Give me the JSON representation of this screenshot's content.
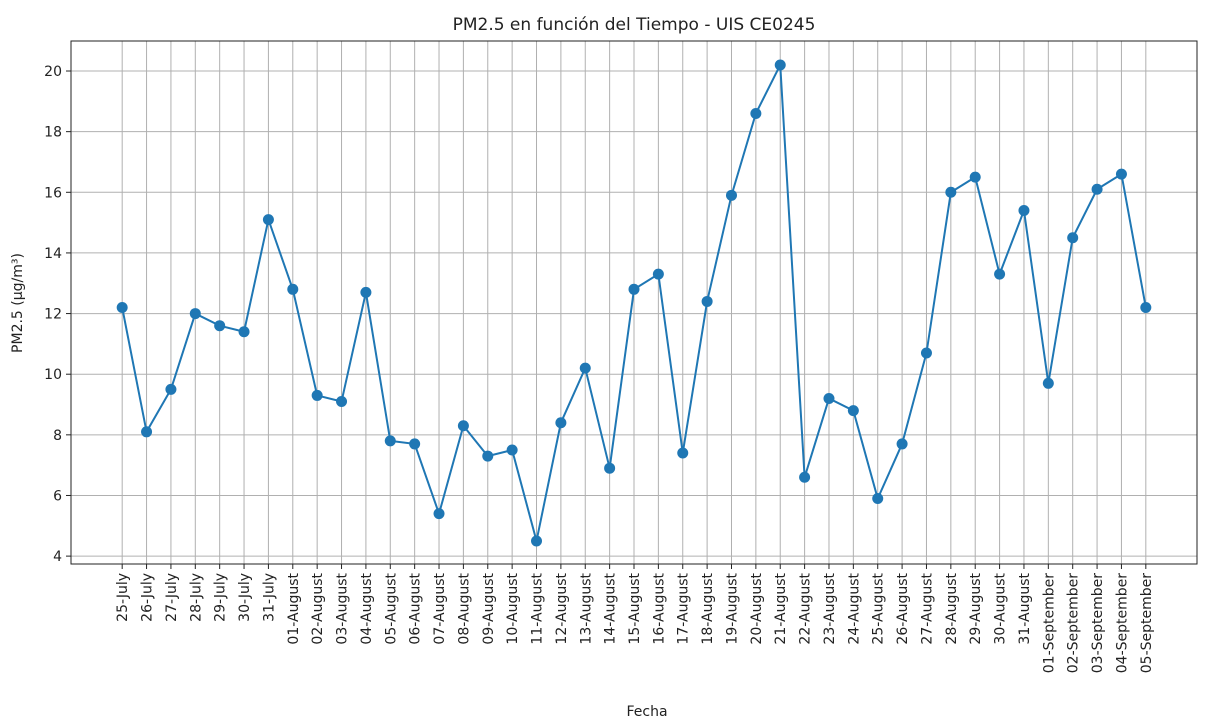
{
  "chart_data": {
    "type": "line",
    "title": "PM2.5 en función del Tiempo - UIS CE0245",
    "x_label": "Fecha",
    "y_label": "PM2.5 (µg/m³)",
    "categories": [
      "25-July",
      "26-July",
      "27-July",
      "28-July",
      "29-July",
      "30-July",
      "31-July",
      "01-August",
      "02-August",
      "03-August",
      "04-August",
      "05-August",
      "06-August",
      "07-August",
      "08-August",
      "09-August",
      "10-August",
      "11-August",
      "12-August",
      "13-August",
      "14-August",
      "15-August",
      "16-August",
      "17-August",
      "18-August",
      "19-August",
      "20-August",
      "21-August",
      "22-August",
      "23-August",
      "24-August",
      "25-August",
      "26-August",
      "27-August",
      "28-August",
      "29-August",
      "30-August",
      "31-August",
      "01-September",
      "02-September",
      "03-September",
      "04-September",
      "05-September"
    ],
    "values": [
      12.2,
      8.1,
      9.5,
      12.0,
      11.6,
      11.4,
      15.1,
      12.8,
      9.3,
      9.1,
      12.7,
      7.8,
      7.7,
      5.4,
      8.3,
      7.3,
      7.5,
      4.5,
      8.4,
      10.2,
      6.9,
      12.8,
      13.3,
      7.4,
      12.4,
      15.9,
      18.6,
      20.2,
      6.6,
      9.2,
      8.8,
      5.9,
      7.7,
      10.7,
      16.0,
      16.5,
      13.3,
      15.4,
      9.7,
      14.5,
      16.1,
      16.6,
      12.2
    ],
    "color": "#1f77b4",
    "ylim": [
      3.74,
      20.99
    ],
    "yticks": [
      4,
      6,
      8,
      10,
      12,
      14,
      16,
      18,
      20
    ],
    "grid": true
  }
}
